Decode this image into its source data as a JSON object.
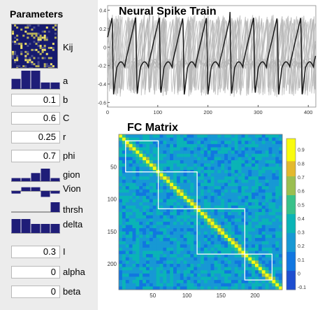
{
  "params": {
    "title": "Parameters",
    "kij_label": "Kij",
    "a_label": "a",
    "a_bars": [
      0.55,
      1.0,
      1.0,
      0.35,
      0.35
    ],
    "b_label": "b",
    "b_value": "0.1",
    "c_label": "C",
    "c_value": "0.6",
    "r_label": "r",
    "r_value": "0.25",
    "phi_label": "phi",
    "phi_value": "0.7",
    "gion_label": "gion",
    "gion_bars": [
      0.25,
      0.25,
      0.65,
      1.0,
      0.25
    ],
    "vion_label": "Vion",
    "vion_bars": [
      -0.3,
      0.45,
      0.45,
      -0.7,
      -0.3
    ],
    "thrsh_label": "thrsh",
    "thrsh_bars": [
      0,
      0,
      0,
      0,
      1.0
    ],
    "delta_label": "delta",
    "delta_bars": [
      1.0,
      1.0,
      0.65,
      0.65,
      0.65
    ],
    "i_label": "I",
    "i_value": "0.3",
    "alpha_label": "alpha",
    "alpha_value": "0",
    "beta_label": "beta",
    "beta_value": "0"
  },
  "spike": {
    "title": "Neural Spike Train",
    "x_ticks": [
      "0",
      "100",
      "200",
      "300",
      "400"
    ],
    "y_ticks": [
      "0.4",
      "0.2",
      "0",
      "-0.2",
      "-0.4",
      "-0.6"
    ]
  },
  "fc": {
    "title": "FC Matrix",
    "x_ticks": [
      "50",
      "100",
      "150",
      "200"
    ],
    "y_ticks": [
      "50",
      "100",
      "150",
      "200"
    ],
    "colorbar_ticks": [
      "0.9",
      "0.8",
      "0.7",
      "0.6",
      "0.5",
      "0.4",
      "0.3",
      "0.2",
      "0.1",
      "0",
      "-0.1"
    ]
  },
  "colors": {
    "bar_fill": "#1f1d78",
    "trace_black": "#1a1a1a",
    "trace_gray": "#b4b4b4",
    "block_outline": "#ffffff"
  }
}
